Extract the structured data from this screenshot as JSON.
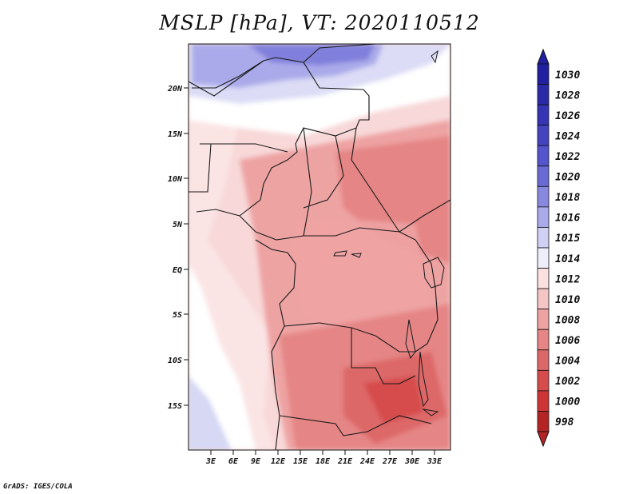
{
  "title": "MSLP [hPa], VT: 2020110512",
  "credit": "GrADS: IGES/COLA",
  "map": {
    "lat_labels": [
      "20N",
      "15N",
      "10N",
      "5N",
      "EQ",
      "5S",
      "10S",
      "15S"
    ],
    "lon_labels": [
      "3E",
      "6E",
      "9E",
      "12E",
      "15E",
      "18E",
      "21E",
      "24E",
      "27E",
      "30E",
      "33E"
    ],
    "colors": {
      "low": "#e56a6a",
      "mid": "#f6c6c6",
      "neutral": "#ffffff",
      "high_light": "#d3d7f3",
      "high": "#9a9ae8",
      "high_strong": "#7272d8"
    }
  },
  "colorbar": {
    "levels": [
      "1030",
      "1028",
      "1026",
      "1024",
      "1022",
      "1020",
      "1018",
      "1016",
      "1015",
      "1014",
      "1012",
      "1010",
      "1008",
      "1006",
      "1004",
      "1002",
      "1000",
      "998"
    ],
    "colors": [
      "#2020a0",
      "#2a2aa8",
      "#3434b4",
      "#4444c0",
      "#5454cc",
      "#6a6ad4",
      "#8888de",
      "#aaaaea",
      "#d0d0f4",
      "#eeeefb",
      "#fbe0e0",
      "#f6c6c6",
      "#eea3a3",
      "#e58585",
      "#dd6868",
      "#d64c4c",
      "#cd3535",
      "#b52424"
    ]
  }
}
